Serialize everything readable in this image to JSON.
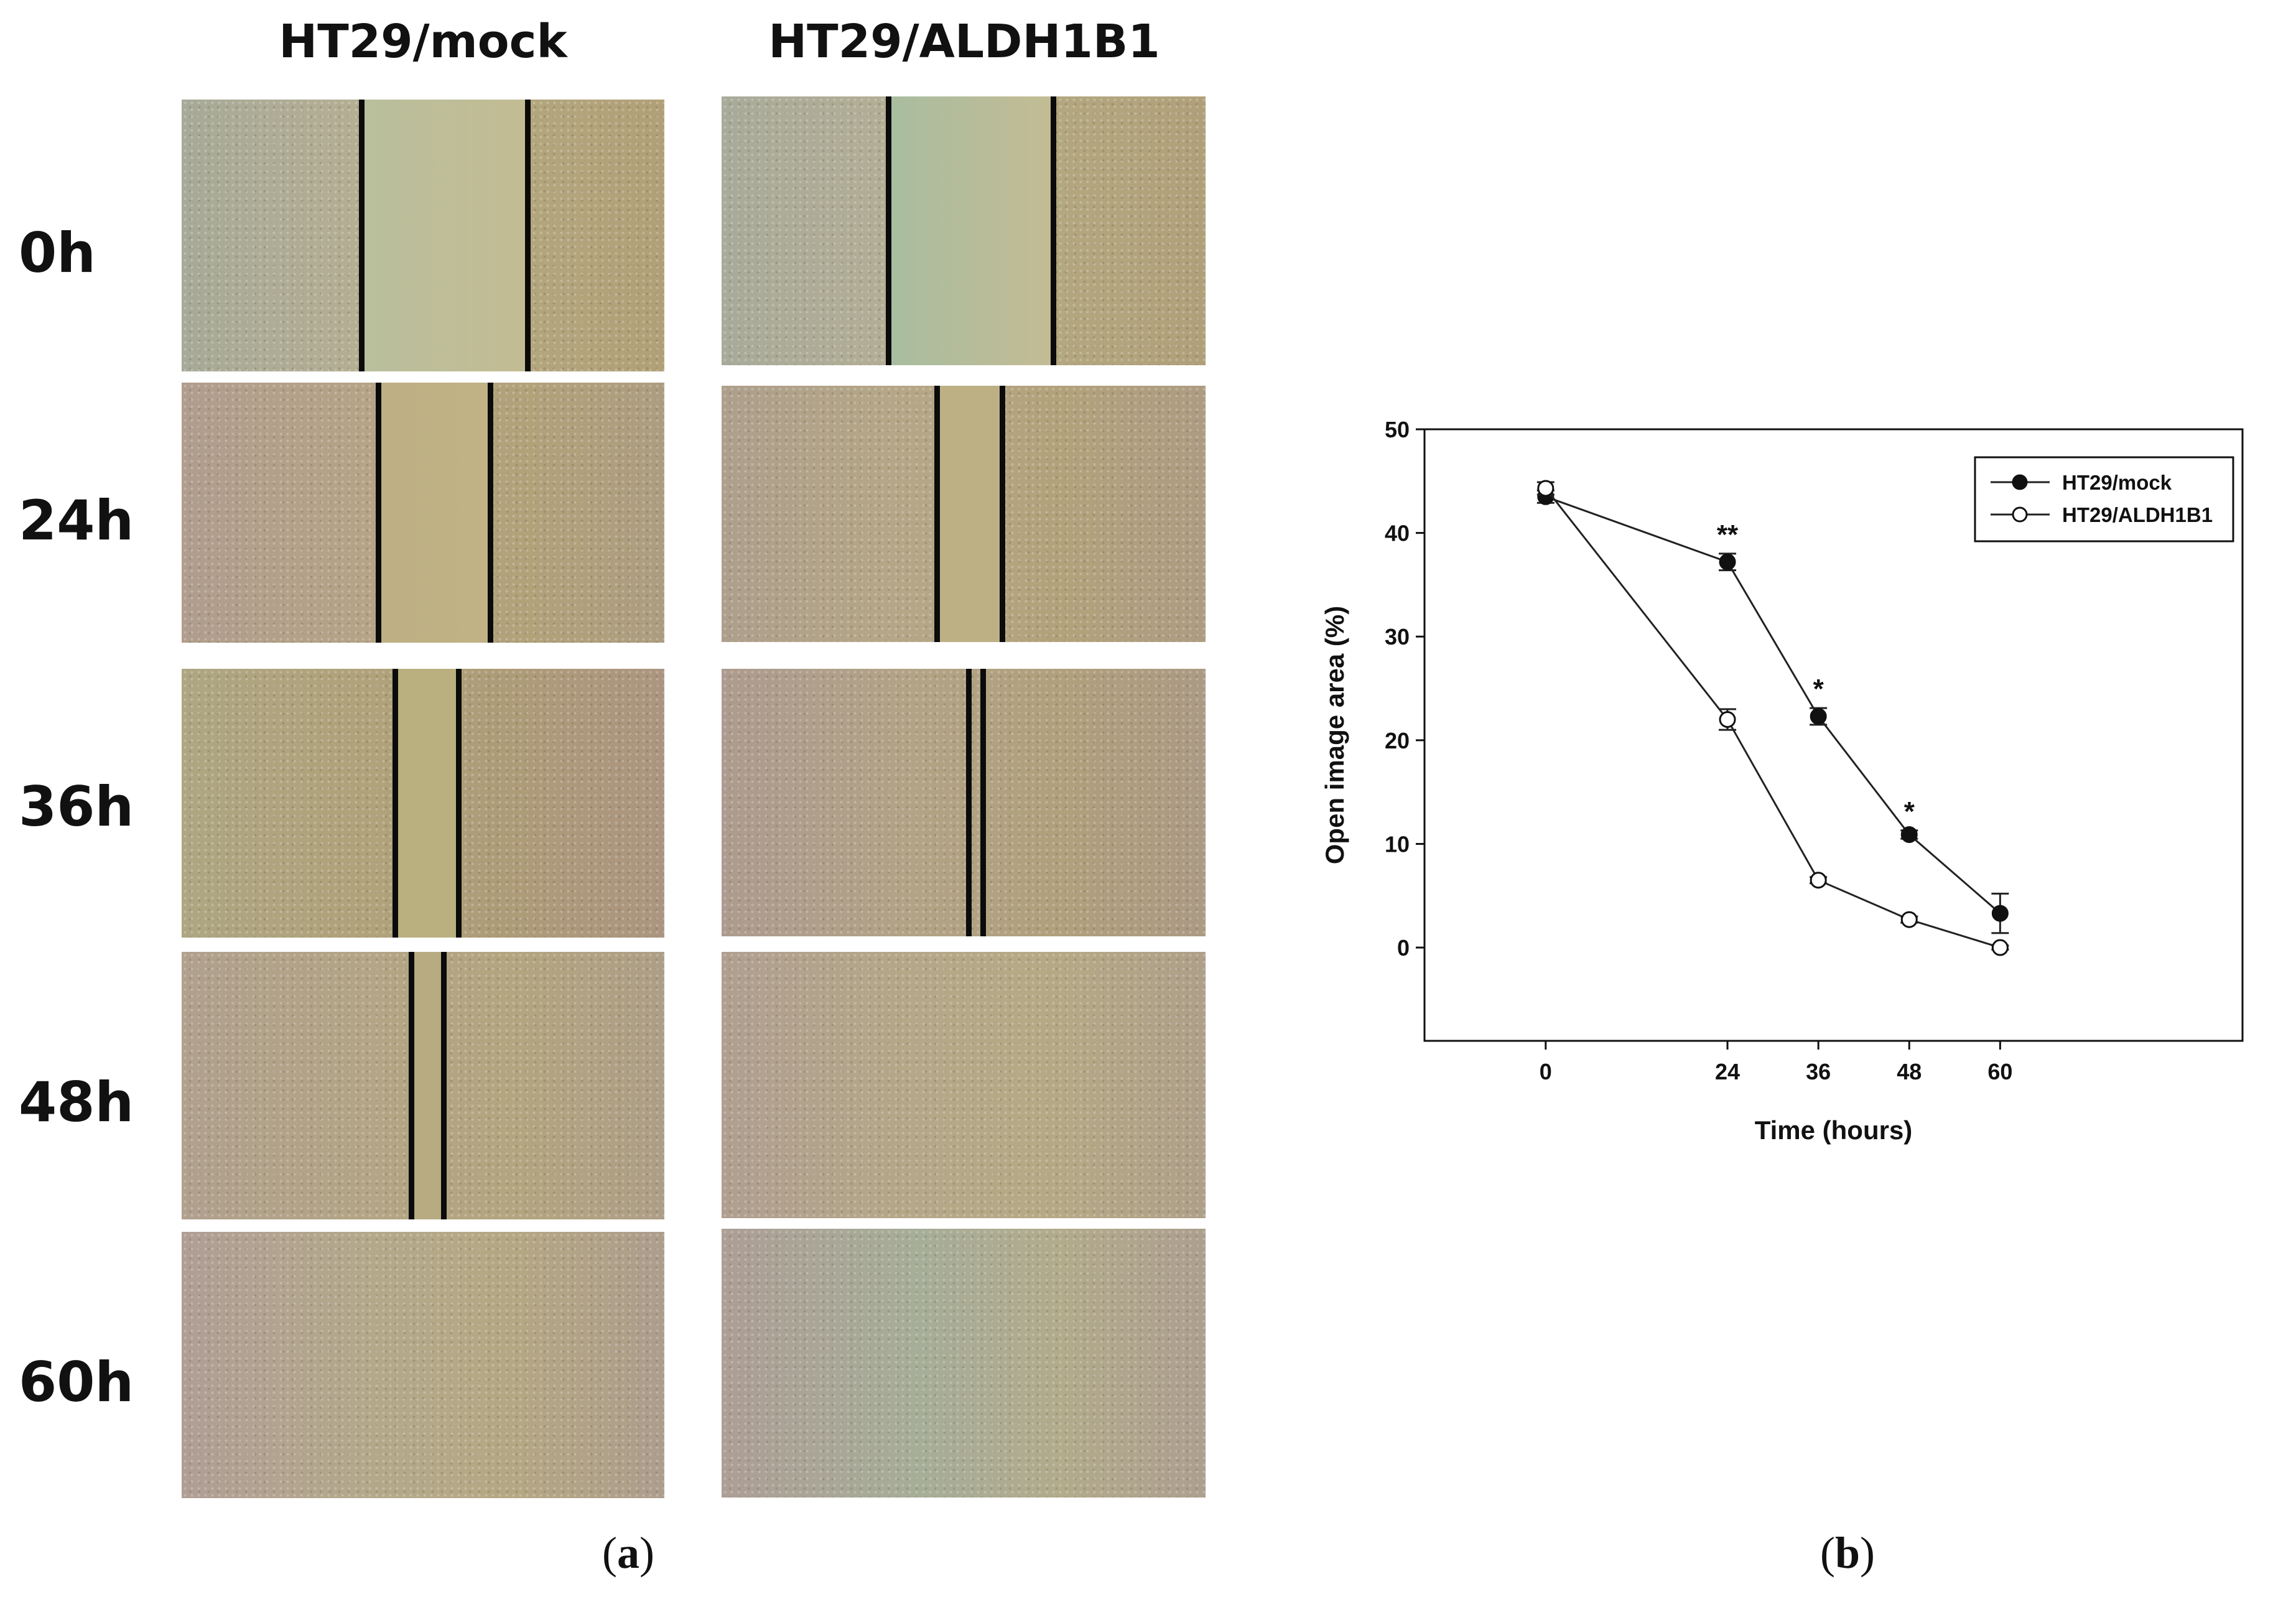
{
  "panel_a": {
    "column_headers": [
      "HT29/mock",
      "HT29/ALDH1B1"
    ],
    "row_labels": [
      "0h",
      "24h",
      "36h",
      "48h",
      "60h"
    ],
    "caption_letter": "a"
  },
  "panel_b": {
    "caption_letter": "b",
    "chart_data": {
      "type": "line",
      "xlabel": "Time (hours)",
      "ylabel": "Open image area (%)",
      "x": [
        0,
        24,
        36,
        48,
        60
      ],
      "x_ticks": [
        0,
        24,
        36,
        48,
        60
      ],
      "y_ticks": [
        0,
        10,
        20,
        30,
        40,
        50
      ],
      "ylim": [
        -9,
        50
      ],
      "grid": false,
      "legend_position": "top-right",
      "series": [
        {
          "name": "HT29/mock",
          "marker": "filled-circle",
          "values": [
            43.5,
            37.2,
            22.3,
            10.9,
            3.3
          ],
          "errors": [
            0.6,
            0.8,
            0.8,
            0.4,
            1.9
          ]
        },
        {
          "name": "HT29/ALDH1B1",
          "marker": "open-circle",
          "values": [
            44.3,
            22.0,
            6.5,
            2.7,
            0.0
          ],
          "errors": [
            0.6,
            1.0,
            0.3,
            0.3,
            0.2
          ]
        }
      ],
      "significance": [
        {
          "x": 24,
          "label": "**"
        },
        {
          "x": 36,
          "label": "*"
        },
        {
          "x": 48,
          "label": "*"
        }
      ]
    }
  }
}
